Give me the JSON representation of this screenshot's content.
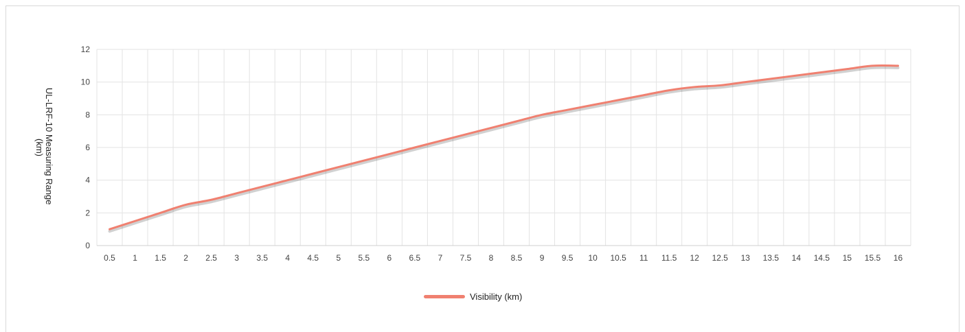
{
  "chart_data": {
    "type": "line",
    "ylabel_lines": [
      "UL-LRF-10 Measuring Range",
      "(km)"
    ],
    "ylim": [
      0,
      12
    ],
    "yticks": [
      0,
      2,
      4,
      6,
      8,
      10,
      12
    ],
    "grid": true,
    "legend_position": "bottom",
    "x": [
      "0.5",
      "1",
      "1.5",
      "2",
      "2.5",
      "3",
      "3.5",
      "4",
      "4.5",
      "5",
      "5.5",
      "6",
      "6.5",
      "7",
      "7.5",
      "8",
      "8.5",
      "9",
      "9.5",
      "10",
      "10.5",
      "11",
      "11.5",
      "12",
      "12.5",
      "13",
      "13.5",
      "14",
      "14.5",
      "15",
      "15.5",
      "16"
    ],
    "series": [
      {
        "name": "Visibility (km)",
        "color": "#f08070",
        "values": [
          1.0,
          1.5,
          2.0,
          2.5,
          2.8,
          3.2,
          3.6,
          4.0,
          4.4,
          4.8,
          5.2,
          5.6,
          6.0,
          6.4,
          6.8,
          7.2,
          7.6,
          8.0,
          8.3,
          8.6,
          8.9,
          9.2,
          9.5,
          9.7,
          9.8,
          10.0,
          10.2,
          10.4,
          10.6,
          10.8,
          11.0,
          11.0
        ]
      }
    ]
  }
}
